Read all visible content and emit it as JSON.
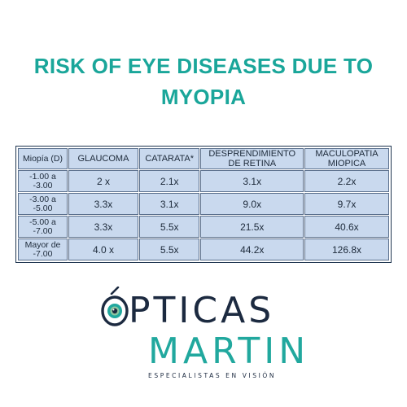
{
  "title": "RISK OF EYE DISEASES DUE TO MYOPIA",
  "table": {
    "headers": [
      "Miopía (D)",
      "GLAUCOMA",
      "CATARATA*",
      "DESPRENDIMIENTO DE RETINA",
      "MACULOPATIA MIOPICA"
    ],
    "rows": [
      [
        "-1.00 a -3.00",
        "2 x",
        "2.1x",
        "3.1x",
        "2.2x"
      ],
      [
        "-3.00 a -5.00",
        "3.3x",
        "3.1x",
        "9.0x",
        "9.7x"
      ],
      [
        "-5.00 a -7.00",
        "3.3x",
        "5.5x",
        "21.5x",
        "40.6x"
      ],
      [
        "Mayor de -7.00",
        "4.0 x",
        "5.5x",
        "44.2x",
        "126.8x"
      ]
    ]
  },
  "logo": {
    "line1_rest": "PTICAS",
    "line2": "MARTIN",
    "tagline": "ESPECIALISTAS EN VISIÓN",
    "icon": "eye-iris-icon",
    "colors": {
      "dark": "#1c2a40",
      "teal": "#21a89e"
    }
  },
  "colors": {
    "title": "#1aa69a",
    "cell_bg": "#c9d9ee",
    "cell_border": "#5a6f8c"
  }
}
